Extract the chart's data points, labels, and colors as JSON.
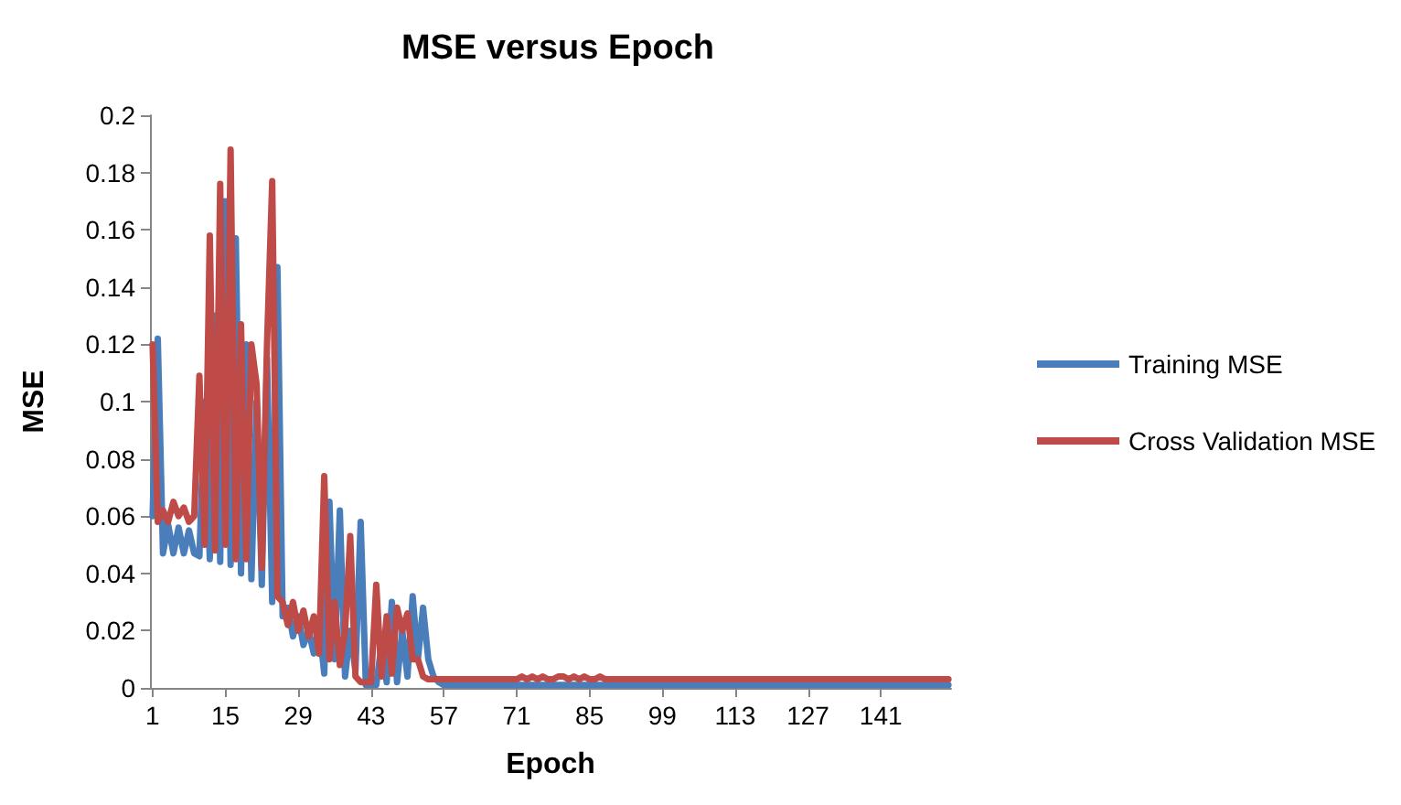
{
  "chart_data": {
    "type": "line",
    "title": "MSE versus Epoch",
    "xlabel": "Epoch",
    "ylabel": "MSE",
    "categories": [
      "1",
      null,
      null,
      null,
      null,
      null,
      null,
      null,
      null,
      null,
      null,
      null,
      null,
      null,
      "15",
      null,
      null,
      null,
      null,
      null,
      null,
      null,
      null,
      null,
      null,
      null,
      null,
      null,
      "29",
      null,
      null,
      null,
      null,
      null,
      null,
      null,
      null,
      null,
      null,
      null,
      null,
      null,
      "43",
      null,
      null,
      null,
      null,
      null,
      null,
      null,
      null,
      null,
      null,
      null,
      null,
      null,
      "57",
      null,
      null,
      null,
      null,
      null,
      null,
      null,
      null,
      null,
      null,
      null,
      null,
      null,
      "71",
      null,
      null,
      null,
      null,
      null,
      null,
      null,
      null,
      null,
      null,
      null,
      null,
      null,
      "85",
      null,
      null,
      null,
      null,
      null,
      null,
      null,
      null,
      null,
      null,
      null,
      null,
      null,
      "99",
      null,
      null,
      null,
      null,
      null,
      null,
      null,
      null,
      null,
      null,
      null,
      null,
      null,
      "113",
      null,
      null,
      null,
      null,
      null,
      null,
      null,
      null,
      null,
      null,
      null,
      null,
      null,
      "127",
      null,
      null,
      null,
      null,
      null,
      null,
      null,
      null,
      null,
      null,
      null,
      null,
      null,
      "141",
      null,
      null,
      null,
      null,
      null,
      null,
      null,
      null,
      null,
      null,
      null,
      null,
      null
    ],
    "series": [
      {
        "name": "Training MSE",
        "color": "#4a7ebb",
        "values": [
          0.06,
          0.122,
          0.047,
          0.057,
          0.047,
          0.056,
          0.047,
          0.055,
          0.047,
          0.046,
          0.1,
          0.045,
          0.13,
          0.044,
          0.17,
          0.043,
          0.157,
          0.04,
          0.12,
          0.038,
          0.1,
          0.036,
          0.115,
          0.03,
          0.147,
          0.025,
          0.028,
          0.018,
          0.025,
          0.015,
          0.02,
          0.012,
          0.022,
          0.005,
          0.065,
          0.01,
          0.062,
          0.004,
          0.02,
          0.006,
          0.058,
          0.001,
          0.001,
          0.001,
          0.015,
          0.002,
          0.03,
          0.002,
          0.02,
          0.004,
          0.032,
          0.01,
          0.028,
          0.01,
          0.004,
          0.002,
          0.001,
          0.001,
          0.001,
          0.001,
          0.001,
          0.001,
          0.001,
          0.001,
          0.001,
          0.001,
          0.001,
          0.001,
          0.001,
          0.001,
          0.001,
          0.001,
          0.001,
          0.001,
          0.001,
          0.001,
          0.001,
          0.001,
          0.001,
          0.001,
          0.001,
          0.001,
          0.001,
          0.001,
          0.001,
          0.001,
          0.001,
          0.001,
          0.001,
          0.001,
          0.001,
          0.001,
          0.001,
          0.001,
          0.001,
          0.001,
          0.001,
          0.001,
          0.001,
          0.001,
          0.001,
          0.001,
          0.001,
          0.001,
          0.001,
          0.001,
          0.001,
          0.001,
          0.001,
          0.001,
          0.001,
          0.001,
          0.001,
          0.001,
          0.001,
          0.001,
          0.001,
          0.001,
          0.001,
          0.001,
          0.001,
          0.001,
          0.001,
          0.001,
          0.001,
          0.001,
          0.001,
          0.001,
          0.001,
          0.001,
          0.001,
          0.001,
          0.001,
          0.001,
          0.001,
          0.001,
          0.001,
          0.001,
          0.001,
          0.001,
          0.001,
          0.001,
          0.001,
          0.001,
          0.001,
          0.001,
          0.001,
          0.001,
          0.001,
          0.001,
          0.001,
          0.001,
          0.001,
          0.001
        ]
      },
      {
        "name": "Cross Validation MSE",
        "color": "#be4b48",
        "values": [
          0.12,
          0.058,
          0.062,
          0.058,
          0.065,
          0.06,
          0.063,
          0.058,
          0.06,
          0.109,
          0.05,
          0.158,
          0.048,
          0.176,
          0.05,
          0.188,
          0.045,
          0.127,
          0.045,
          0.12,
          0.106,
          0.042,
          0.12,
          0.177,
          0.032,
          0.03,
          0.022,
          0.03,
          0.02,
          0.027,
          0.018,
          0.025,
          0.012,
          0.074,
          0.01,
          0.03,
          0.008,
          0.02,
          0.053,
          0.004,
          0.002,
          0.002,
          0.002,
          0.036,
          0.004,
          0.025,
          0.005,
          0.028,
          0.02,
          0.026,
          0.01,
          0.01,
          0.004,
          0.003,
          0.003,
          0.003,
          0.003,
          0.003,
          0.003,
          0.003,
          0.003,
          0.003,
          0.003,
          0.003,
          0.003,
          0.003,
          0.003,
          0.003,
          0.003,
          0.003,
          0.003,
          0.004,
          0.003,
          0.004,
          0.003,
          0.004,
          0.003,
          0.003,
          0.004,
          0.004,
          0.003,
          0.004,
          0.003,
          0.004,
          0.003,
          0.003,
          0.004,
          0.003,
          0.003,
          0.003,
          0.003,
          0.003,
          0.003,
          0.003,
          0.003,
          0.003,
          0.003,
          0.003,
          0.003,
          0.003,
          0.003,
          0.003,
          0.003,
          0.003,
          0.003,
          0.003,
          0.003,
          0.003,
          0.003,
          0.003,
          0.003,
          0.003,
          0.003,
          0.003,
          0.003,
          0.003,
          0.003,
          0.003,
          0.003,
          0.003,
          0.003,
          0.003,
          0.003,
          0.003,
          0.003,
          0.003,
          0.003,
          0.003,
          0.003,
          0.003,
          0.003,
          0.003,
          0.003,
          0.003,
          0.003,
          0.003,
          0.003,
          0.003,
          0.003,
          0.003,
          0.003,
          0.003,
          0.003,
          0.003,
          0.003,
          0.003,
          0.003,
          0.003,
          0.003,
          0.003,
          0.003,
          0.003,
          0.003,
          0.003
        ]
      }
    ],
    "ylim": [
      0,
      0.2
    ],
    "yticks": [
      0,
      0.02,
      0.04,
      0.06,
      0.08,
      0.1,
      0.12,
      0.14,
      0.16,
      0.18,
      0.2
    ],
    "grid": false,
    "legend": "right",
    "marker": "none",
    "line_style": "solid"
  }
}
